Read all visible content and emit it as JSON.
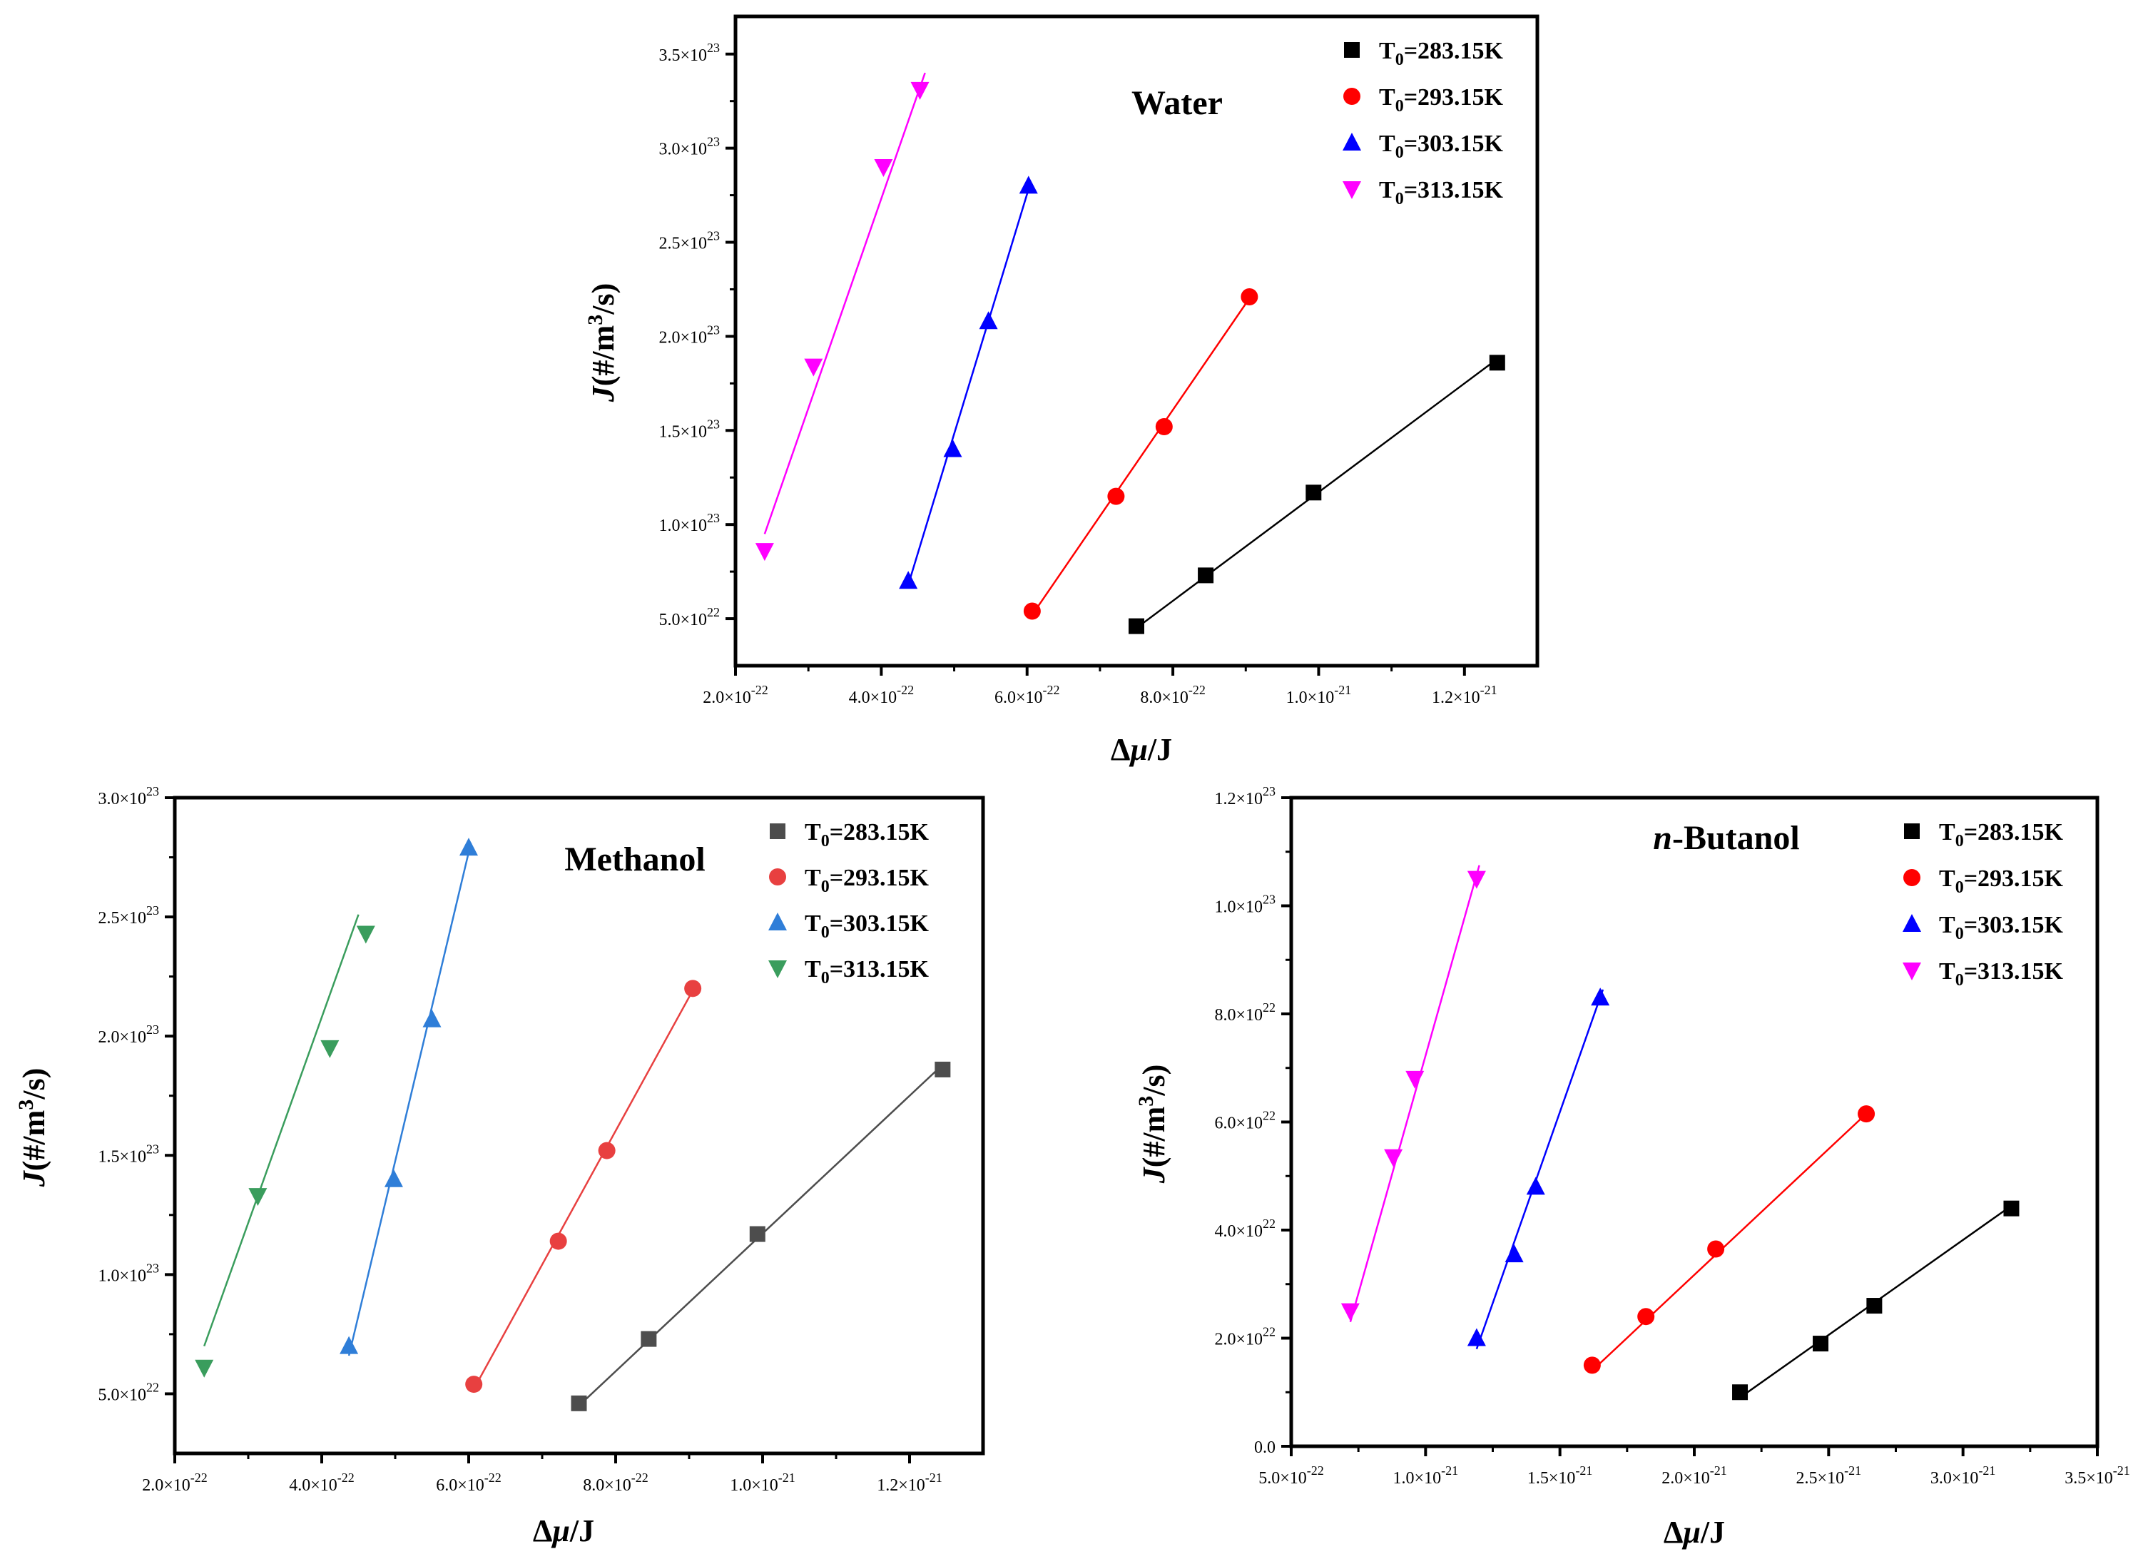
{
  "chart_data": [
    {
      "type": "scatter",
      "title": "Water",
      "xlabel_sym": "Δ",
      "xlabel_var": "μ",
      "xlabel_unit": "/J",
      "ylabel_var": "J",
      "ylabel_unit": "(#/m",
      "ylabel_sup": "3",
      "ylabel_end": "/s)",
      "xlim": [
        2e-22,
        1.3e-21
      ],
      "ylim": [
        2.5e+22,
        3.7e+23
      ],
      "xticks": [
        {
          "value": 2e-22,
          "mant": "2.0×10",
          "exp": "-22"
        },
        {
          "value": 4e-22,
          "mant": "4.0×10",
          "exp": "-22"
        },
        {
          "value": 6e-22,
          "mant": "6.0×10",
          "exp": "-22"
        },
        {
          "value": 8e-22,
          "mant": "8.0×10",
          "exp": "-22"
        },
        {
          "value": 1e-21,
          "mant": "1.0×10",
          "exp": "-21"
        },
        {
          "value": 1.2e-21,
          "mant": "1.2×10",
          "exp": "-21"
        }
      ],
      "yticks": [
        {
          "value": 5e+22,
          "mant": "5.0×10",
          "exp": "22"
        },
        {
          "value": 1e+23,
          "mant": "1.0×10",
          "exp": "23"
        },
        {
          "value": 1.5e+23,
          "mant": "1.5×10",
          "exp": "23"
        },
        {
          "value": 2e+23,
          "mant": "2.0×10",
          "exp": "23"
        },
        {
          "value": 2.5e+23,
          "mant": "2.5×10",
          "exp": "23"
        },
        {
          "value": 3e+23,
          "mant": "3.0×10",
          "exp": "23"
        },
        {
          "value": 3.5e+23,
          "mant": "3.5×10",
          "exp": "23"
        }
      ],
      "series": [
        {
          "name_pre": "T",
          "name_sub": "0",
          "name_post": "=283.15K",
          "color": "#000000",
          "marker": "square",
          "x": [
            7.5e-22,
            8.45e-22,
            9.93e-22,
            1.245e-21
          ],
          "y": [
            4.6e+22,
            7.3e+22,
            1.17e+23,
            1.86e+23
          ],
          "fit": [
            [
              7.5e-22,
              4.5e+22
            ],
            [
              1.245e-21,
              1.88e+23
            ]
          ]
        },
        {
          "name_pre": "T",
          "name_sub": "0",
          "name_post": "=293.15K",
          "color": "#ff0000",
          "marker": "circle",
          "x": [
            6.07e-22,
            7.22e-22,
            7.88e-22,
            9.05e-22
          ],
          "y": [
            5.4e+22,
            1.15e+23,
            1.52e+23,
            2.21e+23
          ],
          "fit": [
            [
              6.07e-22,
              5.2e+22
            ],
            [
              9.1e-22,
              2.23e+23
            ]
          ]
        },
        {
          "name_pre": "T",
          "name_sub": "0",
          "name_post": "=303.15K",
          "color": "#0000ff",
          "marker": "triangle-up",
          "x": [
            4.37e-22,
            4.98e-22,
            5.47e-22,
            6.02e-22
          ],
          "y": [
            7e+22,
            1.4e+23,
            2.08e+23,
            2.8e+23
          ],
          "fit": [
            [
              4.37e-22,
              6.8e+22
            ],
            [
              6.05e-22,
              2.82e+23
            ]
          ]
        },
        {
          "name_pre": "T",
          "name_sub": "0",
          "name_post": "=313.15K",
          "color": "#ff00ff",
          "marker": "triangle-down",
          "x": [
            2.4e-22,
            3.07e-22,
            4.03e-22,
            4.53e-22
          ],
          "y": [
            8.6e+22,
            1.84e+23,
            2.9e+23,
            3.31e+23
          ],
          "fit": [
            [
              2.4e-22,
              9.5e+22
            ],
            [
              4.6e-22,
              3.4e+23
            ]
          ]
        }
      ]
    },
    {
      "type": "scatter",
      "title": "Methanol",
      "xlabel_sym": "Δ",
      "xlabel_var": "μ",
      "xlabel_unit": "/J",
      "ylabel_var": "J",
      "ylabel_unit": "(#/m",
      "ylabel_sup": "3",
      "ylabel_end": "/s)",
      "xlim": [
        2e-22,
        1.3e-21
      ],
      "ylim": [
        2.5e+22,
        3e+23
      ],
      "xticks": [
        {
          "value": 2e-22,
          "mant": "2.0×10",
          "exp": "-22"
        },
        {
          "value": 4e-22,
          "mant": "4.0×10",
          "exp": "-22"
        },
        {
          "value": 6e-22,
          "mant": "6.0×10",
          "exp": "-22"
        },
        {
          "value": 8e-22,
          "mant": "8.0×10",
          "exp": "-22"
        },
        {
          "value": 1e-21,
          "mant": "1.0×10",
          "exp": "-21"
        },
        {
          "value": 1.2e-21,
          "mant": "1.2×10",
          "exp": "-21"
        }
      ],
      "yticks": [
        {
          "value": 5e+22,
          "mant": "5.0×10",
          "exp": "22"
        },
        {
          "value": 1e+23,
          "mant": "1.0×10",
          "exp": "23"
        },
        {
          "value": 1.5e+23,
          "mant": "1.5×10",
          "exp": "23"
        },
        {
          "value": 2e+23,
          "mant": "2.0×10",
          "exp": "23"
        },
        {
          "value": 2.5e+23,
          "mant": "2.5×10",
          "exp": "23"
        },
        {
          "value": 3e+23,
          "mant": "3.0×10",
          "exp": "23"
        }
      ],
      "series": [
        {
          "name_pre": "T",
          "name_sub": "0",
          "name_post": "=283.15K",
          "color": "#4d4d4d",
          "marker": "square",
          "x": [
            7.5e-22,
            8.45e-22,
            9.93e-22,
            1.245e-21
          ],
          "y": [
            4.6e+22,
            7.3e+22,
            1.17e+23,
            1.86e+23
          ],
          "fit": [
            [
              7.5e-22,
              4.5e+22
            ],
            [
              1.245e-21,
              1.88e+23
            ]
          ]
        },
        {
          "name_pre": "T",
          "name_sub": "0",
          "name_post": "=293.15K",
          "color": "#e84040",
          "marker": "circle",
          "x": [
            6.07e-22,
            7.22e-22,
            7.88e-22,
            9.05e-22
          ],
          "y": [
            5.4e+22,
            1.14e+23,
            1.52e+23,
            2.2e+23
          ],
          "fit": [
            [
              6.07e-22,
              5.2e+22
            ],
            [
              9.1e-22,
              2.22e+23
            ]
          ]
        },
        {
          "name_pre": "T",
          "name_sub": "0",
          "name_post": "=303.15K",
          "color": "#2f7ed8",
          "marker": "triangle-up",
          "x": [
            4.37e-22,
            4.98e-22,
            5.5e-22,
            6e-22
          ],
          "y": [
            7e+22,
            1.4e+23,
            2.07e+23,
            2.79e+23
          ],
          "fit": [
            [
              4.37e-22,
              6.6e+22
            ],
            [
              6.03e-22,
              2.81e+23
            ]
          ]
        },
        {
          "name_pre": "T",
          "name_sub": "0",
          "name_post": "=313.15K",
          "color": "#3a9d5d",
          "marker": "triangle-down",
          "x": [
            2.4e-22,
            3.13e-22,
            4.11e-22,
            4.6e-22
          ],
          "y": [
            6.1e+22,
            1.33e+23,
            1.95e+23,
            2.43e+23
          ],
          "fit": [
            [
              2.4e-22,
              7e+22
            ],
            [
              4.5e-22,
              2.51e+23
            ]
          ]
        }
      ]
    },
    {
      "type": "scatter",
      "title_pre": "n",
      "title": "-Butanol",
      "xlabel_sym": "Δ",
      "xlabel_var": "μ",
      "xlabel_unit": "/J",
      "ylabel_var": "J",
      "ylabel_unit": "(#/m",
      "ylabel_sup": "3",
      "ylabel_end": "/s)",
      "xlim": [
        5e-22,
        3.5e-21
      ],
      "ylim": [
        0,
        1.2e+23
      ],
      "xticks": [
        {
          "value": 5e-22,
          "mant": "5.0×10",
          "exp": "-22"
        },
        {
          "value": 1e-21,
          "mant": "1.0×10",
          "exp": "-21"
        },
        {
          "value": 1.5e-21,
          "mant": "1.5×10",
          "exp": "-21"
        },
        {
          "value": 2e-21,
          "mant": "2.0×10",
          "exp": "-21"
        },
        {
          "value": 2.5e-21,
          "mant": "2.5×10",
          "exp": "-21"
        },
        {
          "value": 3e-21,
          "mant": "3.0×10",
          "exp": "-21"
        },
        {
          "value": 3.5e-21,
          "mant": "3.5×10",
          "exp": "-21"
        }
      ],
      "yticks": [
        {
          "value": 0,
          "mant": "0.0",
          "exp": ""
        },
        {
          "value": 2e+22,
          "mant": "2.0×10",
          "exp": "22"
        },
        {
          "value": 4e+22,
          "mant": "4.0×10",
          "exp": "22"
        },
        {
          "value": 6e+22,
          "mant": "6.0×10",
          "exp": "22"
        },
        {
          "value": 8e+22,
          "mant": "8.0×10",
          "exp": "22"
        },
        {
          "value": 1e+23,
          "mant": "1.0×10",
          "exp": "23"
        },
        {
          "value": 1.2e+23,
          "mant": "1.2×10",
          "exp": "23"
        }
      ],
      "series": [
        {
          "name_pre": "T",
          "name_sub": "0",
          "name_post": "=283.15K",
          "color": "#000000",
          "marker": "square",
          "x": [
            2.17e-21,
            2.47e-21,
            2.67e-21,
            3.18e-21
          ],
          "y": [
            1e+22,
            1.9e+22,
            2.6e+22,
            4.4e+22
          ],
          "fit": [
            [
              2.17e-21,
              9e+21
            ],
            [
              3.18e-21,
              4.45e+22
            ]
          ]
        },
        {
          "name_pre": "T",
          "name_sub": "0",
          "name_post": "=293.15K",
          "color": "#ff0000",
          "marker": "circle",
          "x": [
            1.62e-21,
            1.82e-21,
            2.08e-21,
            2.64e-21
          ],
          "y": [
            1.5e+22,
            2.4e+22,
            3.65e+22,
            6.15e+22
          ],
          "fit": [
            [
              1.62e-21,
              1.4e+22
            ],
            [
              2.65e-21,
              6.2e+22
            ]
          ]
        },
        {
          "name_pre": "T",
          "name_sub": "0",
          "name_post": "=303.15K",
          "color": "#0000ff",
          "marker": "triangle-up",
          "x": [
            1.19e-21,
            1.33e-21,
            1.41e-21,
            1.65e-21
          ],
          "y": [
            2e+22,
            3.55e+22,
            4.8e+22,
            8.3e+22
          ],
          "fit": [
            [
              1.19e-21,
              1.8e+22
            ],
            [
              1.66e-21,
              8.45e+22
            ]
          ]
        },
        {
          "name_pre": "T",
          "name_sub": "0",
          "name_post": "=313.15K",
          "color": "#ff00ff",
          "marker": "triangle-down",
          "x": [
            7.2e-22,
            8.8e-22,
            9.6e-22,
            1.19e-21
          ],
          "y": [
            2.5e+22,
            5.35e+22,
            6.8e+22,
            1.05e+23
          ],
          "fit": [
            [
              7.2e-22,
              2.3e+22
            ],
            [
              1.2e-21,
              1.075e+23
            ]
          ]
        }
      ]
    }
  ]
}
